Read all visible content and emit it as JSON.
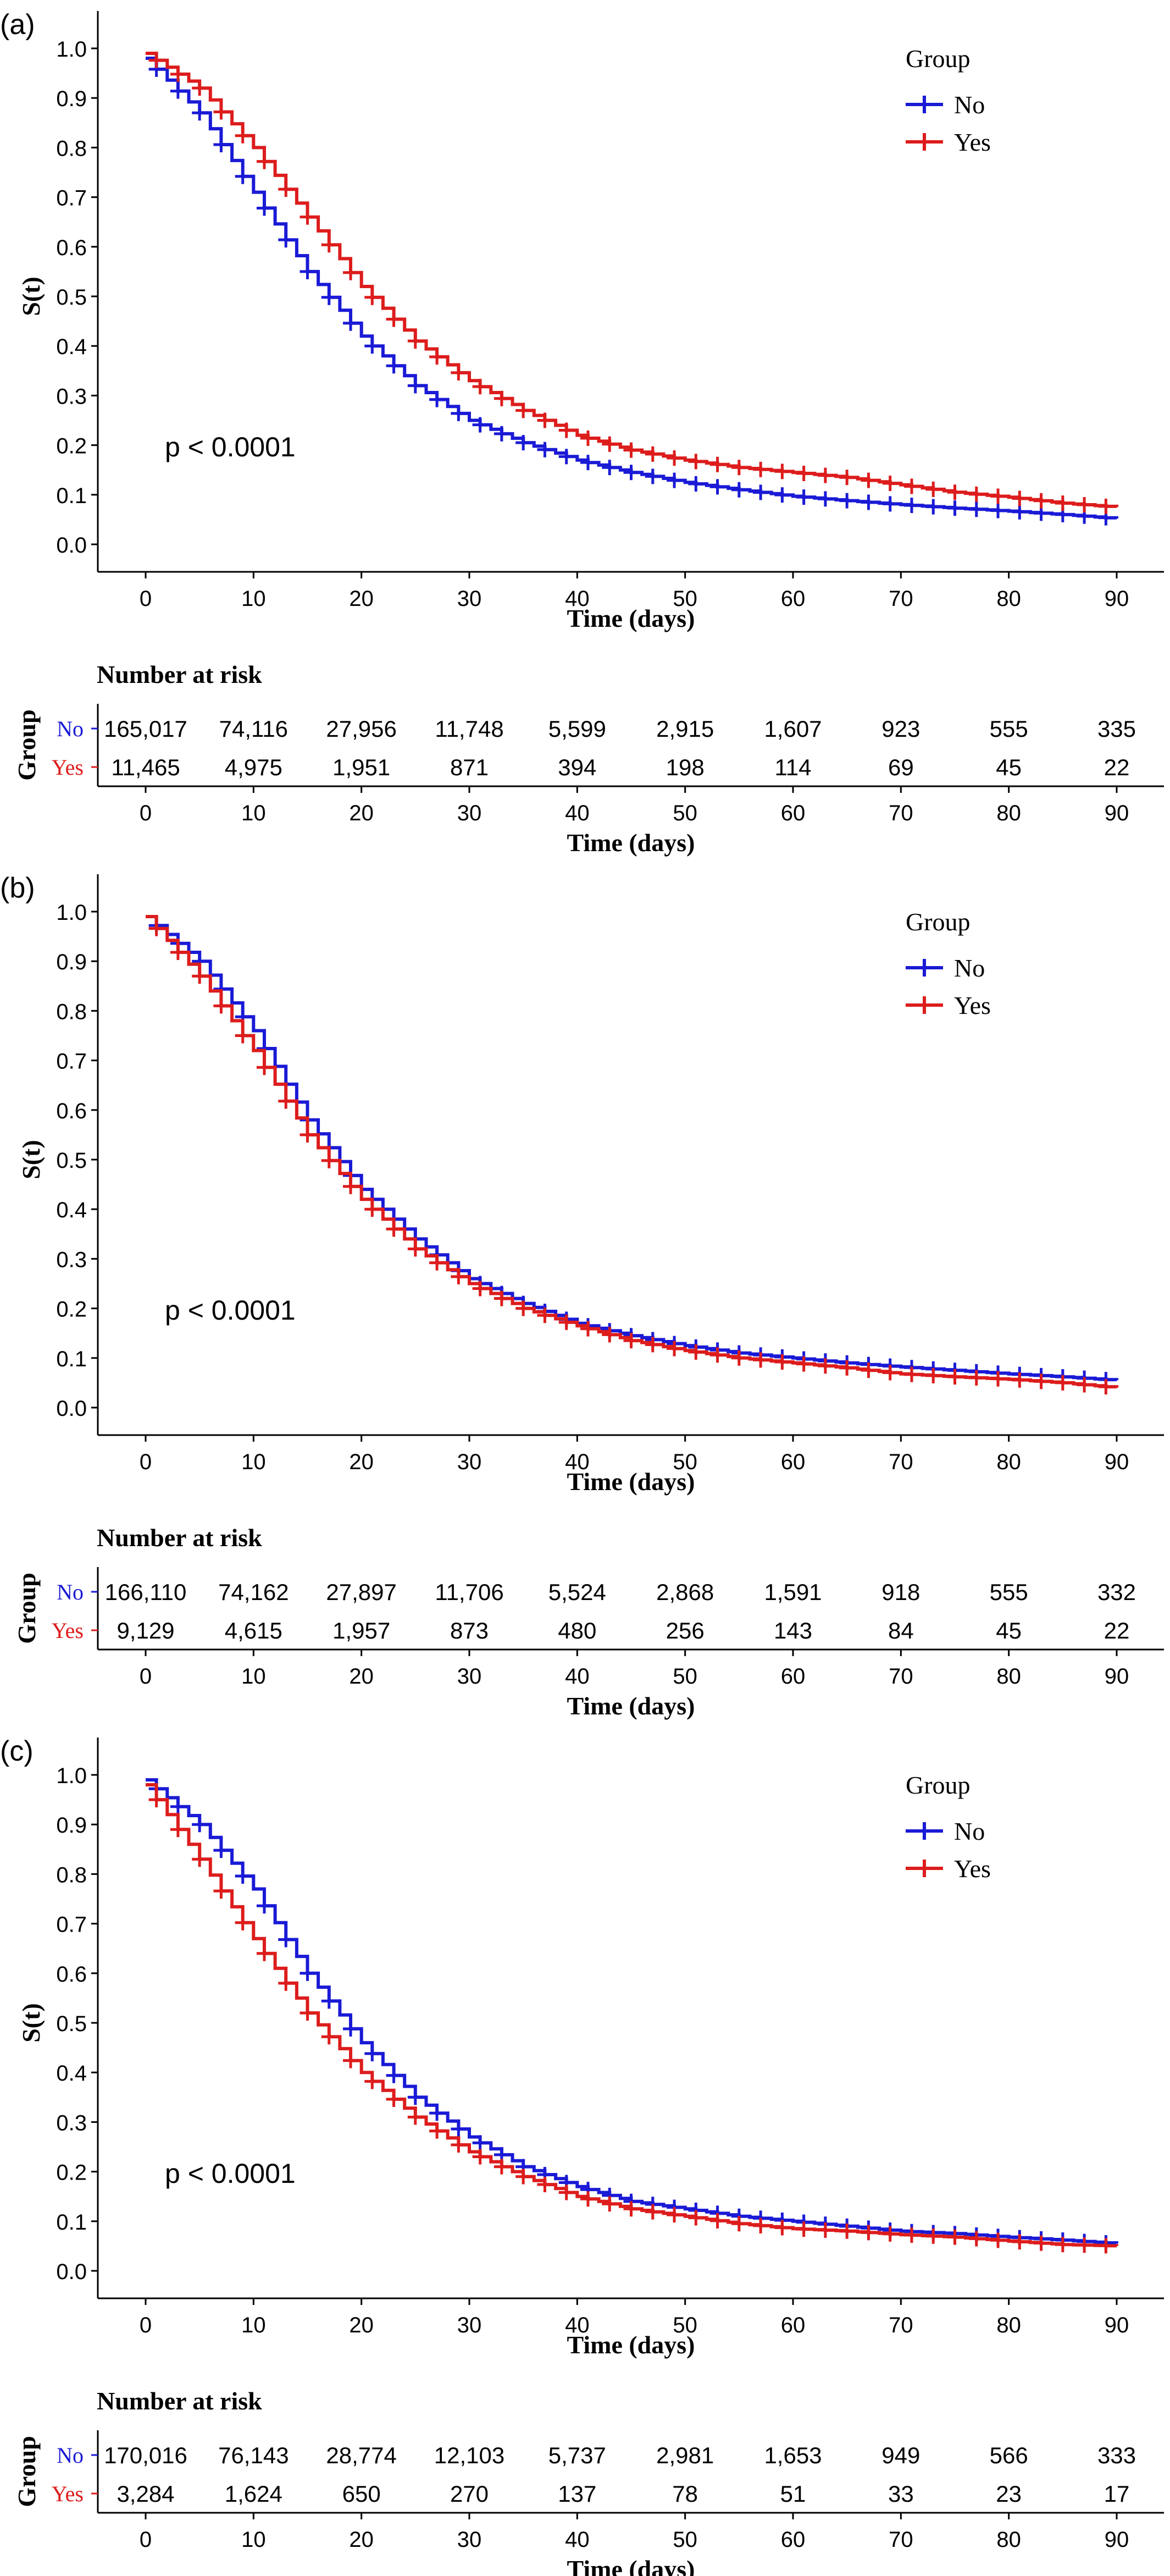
{
  "chart_data": [
    {
      "panel_label": "(a)",
      "type": "line",
      "title": "",
      "xlabel": "Time (days)",
      "ylabel": "S(t)",
      "xlim": [
        0,
        90
      ],
      "ylim": [
        0,
        1
      ],
      "x_ticks": [
        0,
        10,
        20,
        30,
        40,
        50,
        60,
        70,
        80,
        90
      ],
      "y_ticks": [
        0.0,
        0.1,
        0.2,
        0.3,
        0.4,
        0.5,
        0.6,
        0.7,
        0.8,
        0.9,
        1.0
      ],
      "y_tick_labels": [
        "0.0",
        "0.1",
        "0.2",
        "0.3",
        "0.4",
        "0.5",
        "0.6",
        "0.7",
        "0.8",
        "0.9",
        "1.0"
      ],
      "grid": false,
      "pvalue": "p < 0.0001",
      "legend": {
        "title": "Group",
        "placement": "top-right",
        "entries": [
          "No",
          "Yes"
        ]
      },
      "series": [
        {
          "name": "No",
          "color": "#1a1ad6",
          "x": [
            0,
            5,
            10,
            15,
            20,
            25,
            30,
            35,
            40,
            45,
            50,
            55,
            60,
            65,
            70,
            75,
            80,
            85,
            90
          ],
          "values": [
            0.98,
            0.87,
            0.71,
            0.55,
            0.42,
            0.32,
            0.25,
            0.205,
            0.17,
            0.145,
            0.125,
            0.11,
            0.097,
            0.088,
            0.08,
            0.073,
            0.067,
            0.06,
            0.052
          ]
        },
        {
          "name": "Yes",
          "color": "#dd1c1c",
          "x": [
            0,
            5,
            10,
            15,
            20,
            25,
            30,
            35,
            40,
            45,
            50,
            55,
            60,
            65,
            70,
            75,
            80,
            85,
            90
          ],
          "values": [
            0.99,
            0.92,
            0.8,
            0.66,
            0.52,
            0.41,
            0.33,
            0.27,
            0.22,
            0.19,
            0.17,
            0.155,
            0.145,
            0.135,
            0.12,
            0.105,
            0.095,
            0.083,
            0.075
          ]
        }
      ],
      "risk_table": {
        "title": "Number at risk",
        "group_label": "Group",
        "xlabel": "Time (days)",
        "time_points": [
          0,
          10,
          20,
          30,
          40,
          50,
          60,
          70,
          80,
          90
        ],
        "rows": [
          {
            "name": "No",
            "values": [
              "165,017",
              "74,116",
              "27,956",
              "11,748",
              "5,599",
              "2,915",
              "1,607",
              "923",
              "555",
              "335"
            ]
          },
          {
            "name": "Yes",
            "values": [
              "11,465",
              "4,975",
              "1,951",
              "871",
              "394",
              "198",
              "114",
              "69",
              "45",
              "22"
            ]
          }
        ]
      }
    },
    {
      "panel_label": "(b)",
      "type": "line",
      "title": "",
      "xlabel": "Time (days)",
      "ylabel": "S(t)",
      "xlim": [
        0,
        90
      ],
      "ylim": [
        0,
        1
      ],
      "x_ticks": [
        0,
        10,
        20,
        30,
        40,
        50,
        60,
        70,
        80,
        90
      ],
      "y_ticks": [
        0.0,
        0.1,
        0.2,
        0.3,
        0.4,
        0.5,
        0.6,
        0.7,
        0.8,
        0.9,
        1.0
      ],
      "y_tick_labels": [
        "0.0",
        "0.1",
        "0.2",
        "0.3",
        "0.4",
        "0.5",
        "0.6",
        "0.7",
        "0.8",
        "0.9",
        "1.0"
      ],
      "grid": false,
      "pvalue": "p < 0.0001",
      "legend": {
        "title": "Group",
        "placement": "top-right",
        "entries": [
          "No",
          "Yes"
        ]
      },
      "series": [
        {
          "name": "No",
          "color": "#1a1ad6",
          "x": [
            0,
            5,
            10,
            15,
            20,
            25,
            30,
            35,
            40,
            45,
            50,
            55,
            60,
            65,
            70,
            75,
            80,
            85,
            90
          ],
          "values": [
            0.99,
            0.9,
            0.76,
            0.58,
            0.44,
            0.34,
            0.26,
            0.21,
            0.17,
            0.145,
            0.125,
            0.11,
            0.1,
            0.09,
            0.082,
            0.075,
            0.068,
            0.062,
            0.055
          ]
        },
        {
          "name": "Yes",
          "color": "#dd1c1c",
          "x": [
            0,
            5,
            10,
            15,
            20,
            25,
            30,
            35,
            40,
            45,
            50,
            55,
            60,
            65,
            70,
            75,
            80,
            85,
            90
          ],
          "values": [
            0.99,
            0.87,
            0.72,
            0.55,
            0.42,
            0.32,
            0.25,
            0.2,
            0.165,
            0.135,
            0.115,
            0.1,
            0.09,
            0.08,
            0.068,
            0.062,
            0.057,
            0.05,
            0.04
          ]
        }
      ],
      "risk_table": {
        "title": "Number at risk",
        "group_label": "Group",
        "xlabel": "Time (days)",
        "time_points": [
          0,
          10,
          20,
          30,
          40,
          50,
          60,
          70,
          80,
          90
        ],
        "rows": [
          {
            "name": "No",
            "values": [
              "166,110",
              "74,162",
              "27,897",
              "11,706",
              "5,524",
              "2,868",
              "1,591",
              "918",
              "555",
              "332"
            ]
          },
          {
            "name": "Yes",
            "values": [
              "9,129",
              "4,615",
              "1,957",
              "873",
              "480",
              "256",
              "143",
              "84",
              "45",
              "22"
            ]
          }
        ]
      }
    },
    {
      "panel_label": "(c)",
      "type": "line",
      "title": "",
      "xlabel": "Time (days)",
      "ylabel": "S(t)",
      "xlim": [
        0,
        90
      ],
      "ylim": [
        0,
        1
      ],
      "x_ticks": [
        0,
        10,
        20,
        30,
        40,
        50,
        60,
        70,
        80,
        90
      ],
      "y_ticks": [
        0.0,
        0.1,
        0.2,
        0.3,
        0.4,
        0.5,
        0.6,
        0.7,
        0.8,
        0.9,
        1.0
      ],
      "y_tick_labels": [
        "0.0",
        "0.1",
        "0.2",
        "0.3",
        "0.4",
        "0.5",
        "0.6",
        "0.7",
        "0.8",
        "0.9",
        "1.0"
      ],
      "grid": false,
      "pvalue": "p < 0.0001",
      "legend": {
        "title": "Group",
        "placement": "top-right",
        "entries": [
          "No",
          "Yes"
        ]
      },
      "series": [
        {
          "name": "No",
          "color": "#1a1ad6",
          "x": [
            0,
            5,
            10,
            15,
            20,
            25,
            30,
            35,
            40,
            45,
            50,
            55,
            60,
            65,
            70,
            75,
            80,
            85,
            90
          ],
          "values": [
            0.99,
            0.9,
            0.77,
            0.6,
            0.46,
            0.35,
            0.27,
            0.21,
            0.17,
            0.14,
            0.125,
            0.11,
            0.1,
            0.09,
            0.08,
            0.075,
            0.068,
            0.062,
            0.055
          ]
        },
        {
          "name": "Yes",
          "color": "#dd1c1c",
          "x": [
            0,
            5,
            10,
            15,
            20,
            25,
            30,
            35,
            40,
            45,
            50,
            55,
            60,
            65,
            70,
            75,
            80,
            85,
            90
          ],
          "values": [
            0.98,
            0.83,
            0.67,
            0.52,
            0.4,
            0.31,
            0.24,
            0.19,
            0.15,
            0.125,
            0.11,
            0.095,
            0.085,
            0.08,
            0.073,
            0.068,
            0.06,
            0.053,
            0.05
          ]
        }
      ],
      "risk_table": {
        "title": "Number at risk",
        "group_label": "Group",
        "xlabel": "Time (days)",
        "time_points": [
          0,
          10,
          20,
          30,
          40,
          50,
          60,
          70,
          80,
          90
        ],
        "rows": [
          {
            "name": "No",
            "values": [
              "170,016",
              "76,143",
              "28,774",
              "12,103",
              "5,737",
              "2,981",
              "1,653",
              "949",
              "566",
              "333"
            ]
          },
          {
            "name": "Yes",
            "values": [
              "3,284",
              "1,624",
              "650",
              "270",
              "137",
              "78",
              "51",
              "33",
              "23",
              "17"
            ]
          }
        ]
      }
    }
  ]
}
